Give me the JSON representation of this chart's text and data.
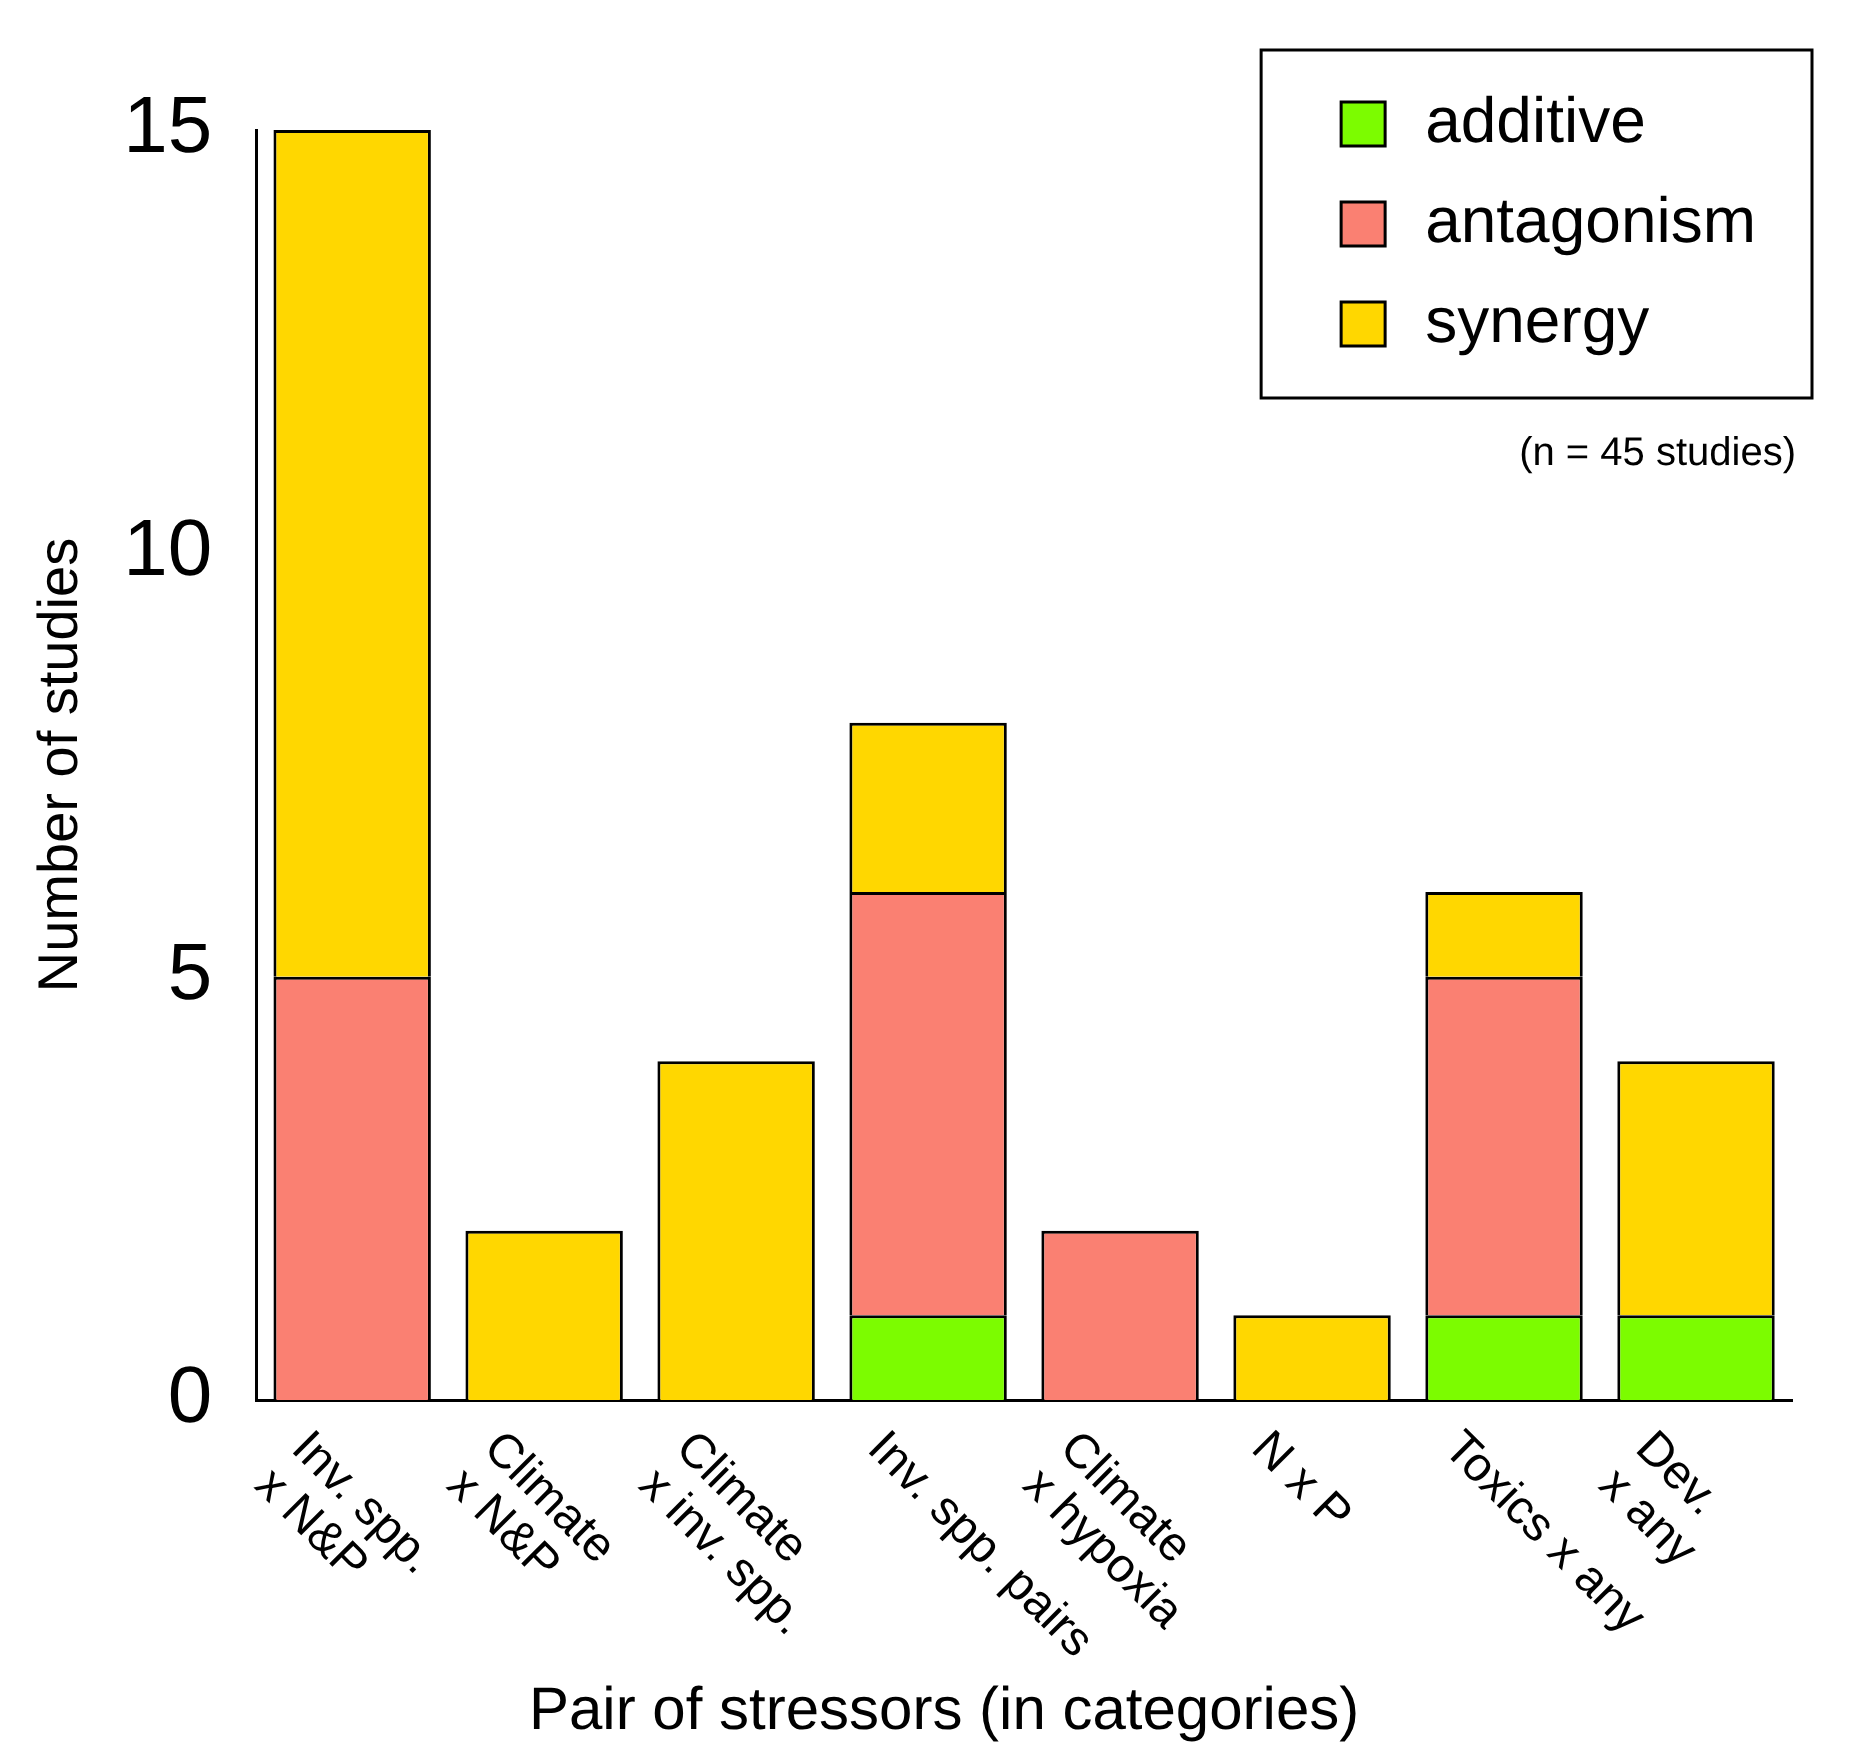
{
  "chart_data": {
    "type": "bar",
    "stacked": true,
    "xlabel": "Pair of stressors (in categories)",
    "ylabel": "Number of studies",
    "categories": [
      "Inv. spp.\nx N&P",
      "Climate\nx N&P",
      "Climate\nx inv. spp.",
      "Inv. spp. pairs",
      "Climate\nx hypoxia",
      "N x P",
      "Toxics x any",
      "Dev.\nx any"
    ],
    "series": [
      {
        "name": "additive",
        "color": "#7cfc00",
        "values": [
          0,
          0,
          0,
          1,
          0,
          0,
          1,
          1
        ]
      },
      {
        "name": "antagonism",
        "color": "#fa8072",
        "values": [
          5,
          0,
          0,
          5,
          2,
          0,
          4,
          0
        ]
      },
      {
        "name": "synergy",
        "color": "#ffd700",
        "values": [
          10,
          2,
          4,
          2,
          0,
          1,
          1,
          3
        ]
      }
    ],
    "ylim": [
      0,
      15
    ],
    "yticks": [
      0,
      5,
      10,
      15
    ],
    "grid": false,
    "legend": "top right",
    "annotations": [
      "(n = 45 studies)"
    ]
  }
}
